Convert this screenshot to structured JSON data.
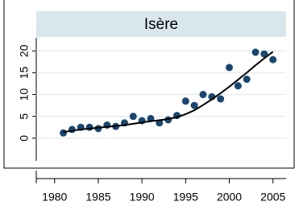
{
  "chart_data": {
    "type": "scatter",
    "title": "Isère",
    "x": [
      1981,
      1982,
      1983,
      1984,
      1985,
      1986,
      1987,
      1988,
      1989,
      1990,
      1991,
      1992,
      1993,
      1994,
      1995,
      1996,
      1997,
      1998,
      1999,
      2000,
      2001,
      2002,
      2003,
      2004,
      2005
    ],
    "series": [
      {
        "color": "#1a476f",
        "values": [
          1.2,
          2,
          2.5,
          2.5,
          2.2,
          3,
          2.7,
          3.5,
          5,
          4,
          4.5,
          3.5,
          4.2,
          5.2,
          8.5,
          7.5,
          10,
          9.5,
          9,
          16.2,
          12,
          13.5,
          19.7,
          19.3,
          18
        ]
      },
      {
        "color": "#000000",
        "line": true,
        "values": [
          1.4,
          1.7,
          2.0,
          2.2,
          2.4,
          2.6,
          2.8,
          3.0,
          3.3,
          3.6,
          3.9,
          4.1,
          4.4,
          4.8,
          5.5,
          6.4,
          7.6,
          8.9,
          10.3,
          11.8,
          13.4,
          15.0,
          16.7,
          18.3,
          19.8
        ]
      }
    ],
    "xlim": [
      1977.9,
      2006.5
    ],
    "xticks": [
      1980,
      1985,
      1990,
      1995,
      2000,
      2005
    ],
    "ylim": [
      -5.2,
      23
    ],
    "yticks": [
      0,
      5,
      10,
      15,
      20
    ],
    "grid": true
  }
}
